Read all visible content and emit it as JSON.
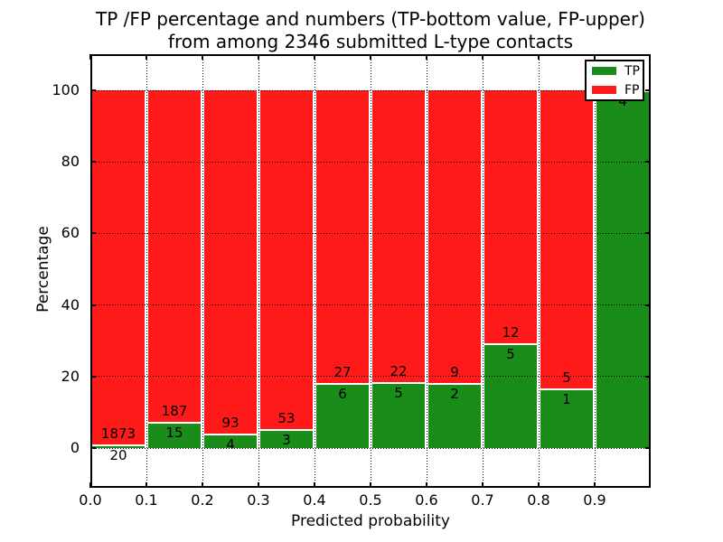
{
  "title": {
    "line1": "TP /FP percentage and numbers (TP-bottom value, FP-upper)",
    "line2": "from among 2346 submitted L-type contacts"
  },
  "y_axis": {
    "label": "Percentage",
    "ticks": [
      "0",
      "20",
      "40",
      "60",
      "80",
      "100"
    ]
  },
  "x_axis": {
    "label": "Predicted probability",
    "ticks": [
      "0.0",
      "0.1",
      "0.2",
      "0.3",
      "0.4",
      "0.5",
      "0.6",
      "0.7",
      "0.8",
      "0.9"
    ]
  },
  "legend": {
    "items": [
      {
        "label": "TP",
        "color": "#1a8c1a"
      },
      {
        "label": "FP",
        "color": "#ff1a1a"
      }
    ]
  },
  "colors": {
    "tp_green": "#1a8c1a",
    "fp_red": "#ff1a1a",
    "grid": "#000000"
  },
  "chart_data": {
    "type": "bar",
    "stacked": true,
    "normalized_to_percent": true,
    "title": "TP /FP percentage and numbers (TP-bottom value, FP-upper) from among 2346 submitted L-type contacts",
    "xlabel": "Predicted probability",
    "ylabel": "Percentage",
    "xlim": [
      0.0,
      1.0
    ],
    "ylim": [
      -11,
      110
    ],
    "grid": "dotted",
    "legend_position": "upper right",
    "bin_width": 0.1,
    "bin_starts": [
      0.0,
      0.1,
      0.2,
      0.3,
      0.4,
      0.5,
      0.6,
      0.7,
      0.8,
      0.9
    ],
    "yticks": [
      0,
      20,
      40,
      60,
      80,
      100
    ],
    "series": [
      {
        "name": "TP",
        "color": "#1a8c1a",
        "counts": [
          20,
          15,
          4,
          3,
          6,
          5,
          2,
          5,
          1,
          4
        ]
      },
      {
        "name": "FP",
        "color": "#ff1a1a",
        "counts": [
          1873,
          187,
          93,
          53,
          27,
          22,
          9,
          12,
          5,
          0
        ]
      }
    ],
    "tp_percent": [
      1.06,
      7.43,
      4.12,
      5.36,
      18.18,
      18.52,
      18.18,
      29.41,
      16.67,
      100.0
    ],
    "total_contacts": 2346
  }
}
